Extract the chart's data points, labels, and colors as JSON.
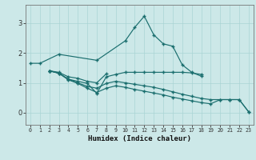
{
  "xlabel": "Humidex (Indice chaleur)",
  "bg_color": "#cce8e8",
  "line_color": "#1a6e6e",
  "grid_color": "#aad4d4",
  "xlim": [
    -0.5,
    23.5
  ],
  "ylim": [
    -0.4,
    3.6
  ],
  "xticks": [
    0,
    1,
    2,
    3,
    4,
    5,
    6,
    7,
    8,
    9,
    10,
    11,
    12,
    13,
    14,
    15,
    16,
    17,
    18,
    19,
    20,
    21,
    22,
    23
  ],
  "yticks": [
    0,
    1,
    2,
    3
  ],
  "series1_x": [
    0,
    1,
    3,
    7,
    10,
    11,
    12,
    13,
    14,
    15,
    16,
    17,
    18
  ],
  "series1_y": [
    1.65,
    1.65,
    1.95,
    1.75,
    2.4,
    2.85,
    3.22,
    2.6,
    2.3,
    2.22,
    1.6,
    1.35,
    1.22
  ],
  "series2_x": [
    2,
    3,
    4,
    5,
    6,
    7,
    8
  ],
  "series2_y": [
    1.4,
    1.35,
    1.2,
    1.15,
    1.05,
    1.0,
    1.3
  ],
  "series3_x": [
    2,
    3,
    4,
    5,
    6,
    7,
    8,
    9,
    10,
    11,
    12,
    13,
    14,
    15,
    16,
    17,
    18
  ],
  "series3_y": [
    1.4,
    1.32,
    1.12,
    1.05,
    0.98,
    0.65,
    1.2,
    1.28,
    1.35,
    1.35,
    1.35,
    1.35,
    1.35,
    1.35,
    1.35,
    1.33,
    1.28
  ],
  "series4_x": [
    2,
    3,
    4,
    5,
    6,
    7,
    8,
    9,
    10,
    11,
    12,
    13,
    14,
    15,
    16,
    17,
    18,
    19,
    20,
    21,
    22,
    23
  ],
  "series4_y": [
    1.4,
    1.32,
    1.12,
    1.0,
    0.88,
    0.82,
    0.98,
    1.05,
    1.0,
    0.95,
    0.9,
    0.85,
    0.78,
    0.7,
    0.62,
    0.55,
    0.48,
    0.44,
    0.44,
    0.44,
    0.44,
    0.03
  ],
  "series5_x": [
    2,
    3,
    4,
    5,
    6,
    7,
    8,
    9,
    10,
    11,
    12,
    13,
    14,
    15,
    16,
    17,
    18,
    19,
    20,
    21,
    22,
    23
  ],
  "series5_y": [
    1.4,
    1.32,
    1.1,
    0.98,
    0.82,
    0.68,
    0.82,
    0.9,
    0.85,
    0.78,
    0.72,
    0.66,
    0.6,
    0.52,
    0.46,
    0.4,
    0.34,
    0.3,
    0.44,
    0.44,
    0.44,
    0.03
  ]
}
